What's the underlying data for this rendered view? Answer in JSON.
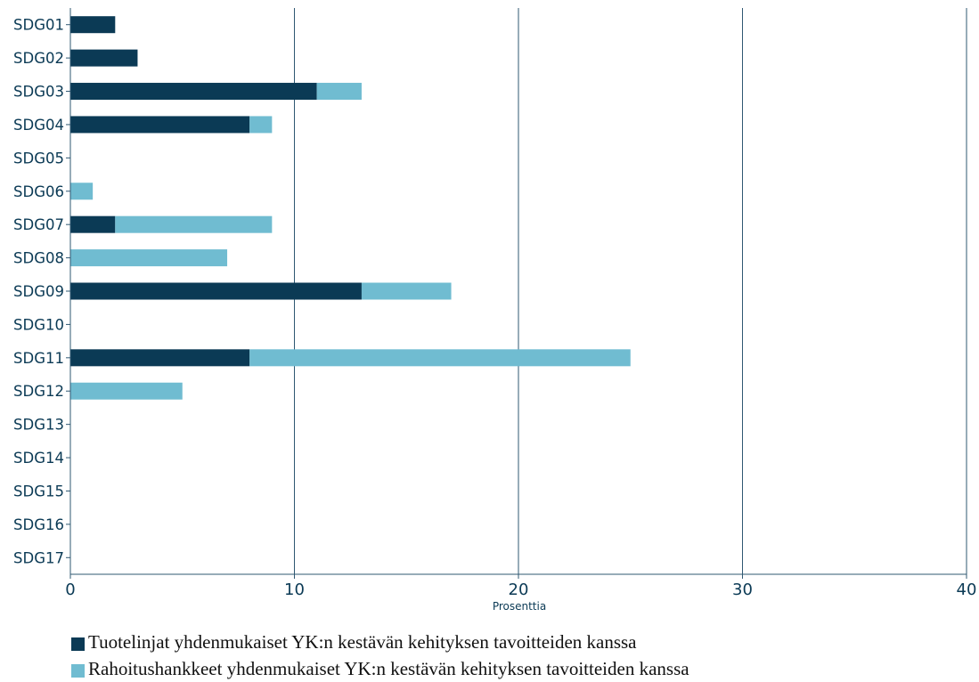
{
  "chart_data": {
    "type": "bar",
    "orientation": "horizontal",
    "stacked": true,
    "categories": [
      "SDG01",
      "SDG02",
      "SDG03",
      "SDG04",
      "SDG05",
      "SDG06",
      "SDG07",
      "SDG08",
      "SDG09",
      "SDG10",
      "SDG11",
      "SDG12",
      "SDG13",
      "SDG14",
      "SDG15",
      "SDG16",
      "SDG17"
    ],
    "series": [
      {
        "name": "Tuotelinjat yhdenmukaiset YK:n kestävän kehityksen tavoitteiden kanssa",
        "color": "#0b3a55",
        "values": [
          2,
          3,
          11,
          8,
          0,
          0,
          2,
          0,
          13,
          0,
          8,
          0,
          0,
          0,
          0,
          0,
          0
        ]
      },
      {
        "name": "Rahoitushankkeet yhdenmukaiset YK:n kestävän kehityksen tavoitteiden kanssa",
        "color": "#70bcd1",
        "values": [
          0,
          0,
          2,
          1,
          0,
          1,
          7,
          7,
          4,
          0,
          17,
          5,
          0,
          0,
          0,
          0,
          0
        ]
      }
    ],
    "xlabel": "Prosenttia",
    "ylabel": "",
    "xlim": [
      0,
      40
    ],
    "xticks": [
      0,
      10,
      20,
      30,
      40
    ],
    "grid": "vertical",
    "legend_position": "bottom-left"
  }
}
